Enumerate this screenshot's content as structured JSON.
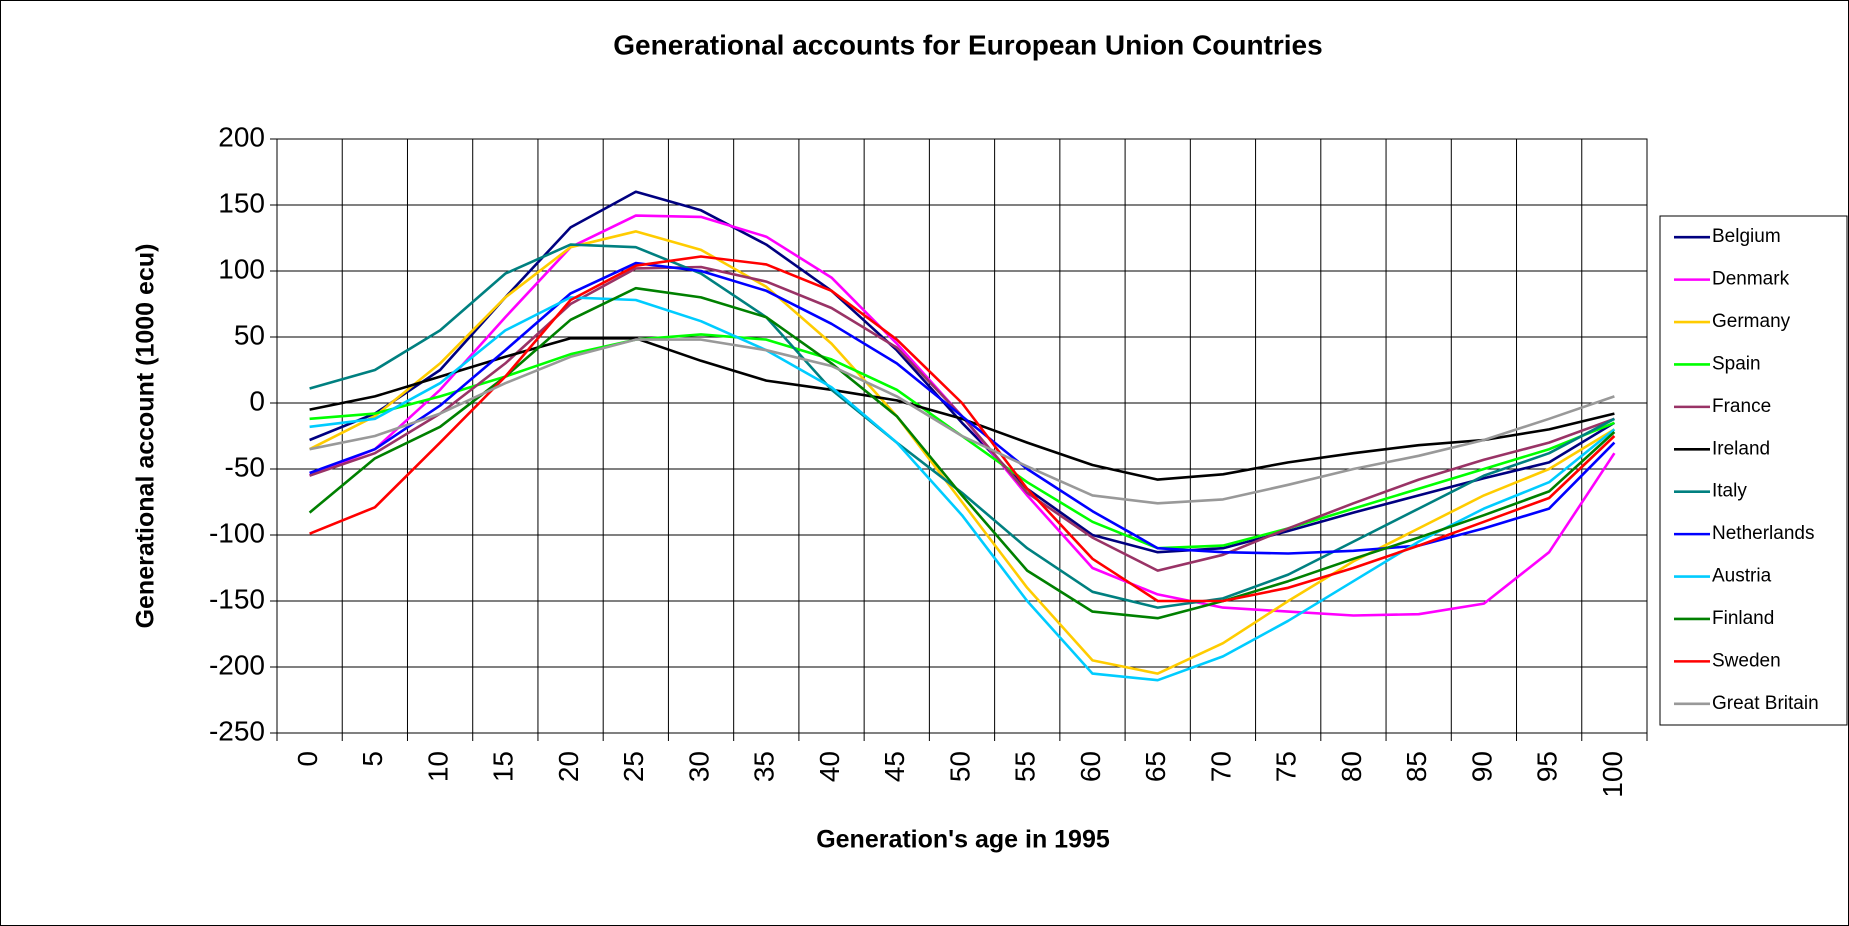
{
  "chart_data": {
    "type": "line",
    "title": "Generational accounts for European Union Countries",
    "x_label": "Generation's age in 1995",
    "y_label": "Generational account (1000 ecu)",
    "categories": [
      "0",
      "5",
      "10",
      "15",
      "20",
      "25",
      "30",
      "35",
      "40",
      "45",
      "50",
      "55",
      "60",
      "65",
      "70",
      "75",
      "80",
      "85",
      "90",
      "95",
      "100"
    ],
    "ylim": [
      -250,
      200
    ],
    "yticks": [
      -250,
      -200,
      -150,
      -100,
      -50,
      0,
      50,
      100,
      150,
      200
    ],
    "grid": true,
    "legend": "right",
    "series": [
      {
        "name": "Belgium",
        "color": "#000080",
        "values": [
          -28,
          -8,
          25,
          80,
          133,
          160,
          146,
          120,
          85,
          40,
          -15,
          -65,
          -100,
          -113,
          -110,
          -97,
          -83,
          -70,
          -57,
          -45,
          -15
        ]
      },
      {
        "name": "Denmark",
        "color": "#ff00ff",
        "values": [
          -55,
          -35,
          10,
          65,
          118,
          142,
          141,
          126,
          95,
          45,
          -10,
          -70,
          -125,
          -145,
          -155,
          -158,
          -161,
          -160,
          -152,
          -113,
          -38
        ]
      },
      {
        "name": "Germany",
        "color": "#ffcc00",
        "values": [
          -35,
          -10,
          30,
          80,
          118,
          130,
          116,
          88,
          45,
          -10,
          -75,
          -140,
          -195,
          -205,
          -182,
          -150,
          -120,
          -95,
          -70,
          -50,
          -20
        ]
      },
      {
        "name": "Spain",
        "color": "#00ff00",
        "values": [
          -12,
          -8,
          5,
          20,
          37,
          48,
          52,
          48,
          33,
          10,
          -25,
          -60,
          -90,
          -110,
          -108,
          -95,
          -80,
          -65,
          -50,
          -35,
          -15
        ]
      },
      {
        "name": "France",
        "color": "#993366",
        "values": [
          -55,
          -38,
          -8,
          30,
          75,
          102,
          103,
          92,
          72,
          42,
          -10,
          -68,
          -102,
          -127,
          -115,
          -95,
          -76,
          -58,
          -43,
          -30,
          -12
        ]
      },
      {
        "name": "Ireland",
        "color": "#000000",
        "values": [
          -5,
          5,
          20,
          35,
          49,
          49,
          32,
          17,
          10,
          2,
          -12,
          -30,
          -47,
          -58,
          -54,
          -45,
          -38,
          -32,
          -28,
          -20,
          -8
        ]
      },
      {
        "name": "Italy",
        "color": "#008080",
        "values": [
          11,
          25,
          55,
          98,
          120,
          118,
          98,
          65,
          10,
          -30,
          -68,
          -110,
          -143,
          -155,
          -148,
          -130,
          -105,
          -80,
          -55,
          -38,
          -12
        ]
      },
      {
        "name": "Netherlands",
        "color": "#0000ff",
        "values": [
          -53,
          -35,
          -2,
          40,
          83,
          106,
          100,
          85,
          60,
          30,
          -10,
          -50,
          -82,
          -110,
          -113,
          -114,
          -112,
          -108,
          -95,
          -80,
          -30
        ]
      },
      {
        "name": "Austria",
        "color": "#00ccff",
        "values": [
          -18,
          -12,
          15,
          55,
          80,
          78,
          62,
          40,
          12,
          -30,
          -85,
          -150,
          -205,
          -210,
          -192,
          -165,
          -135,
          -105,
          -80,
          -60,
          -20
        ]
      },
      {
        "name": "Finland",
        "color": "#008000",
        "values": [
          -83,
          -42,
          -18,
          20,
          63,
          87,
          80,
          65,
          30,
          -10,
          -70,
          -127,
          -158,
          -163,
          -150,
          -135,
          -118,
          -102,
          -85,
          -67,
          -22
        ]
      },
      {
        "name": "Sweden",
        "color": "#ff0000",
        "values": [
          -99,
          -79,
          -30,
          20,
          78,
          104,
          111,
          105,
          85,
          48,
          0,
          -65,
          -118,
          -150,
          -150,
          -140,
          -125,
          -108,
          -90,
          -72,
          -25
        ]
      },
      {
        "name": "Great Britain",
        "color": "#999999",
        "values": [
          -35,
          -25,
          -8,
          15,
          35,
          48,
          48,
          40,
          28,
          5,
          -25,
          -48,
          -70,
          -76,
          -73,
          -62,
          -50,
          -40,
          -28,
          -12,
          5
        ]
      }
    ]
  }
}
